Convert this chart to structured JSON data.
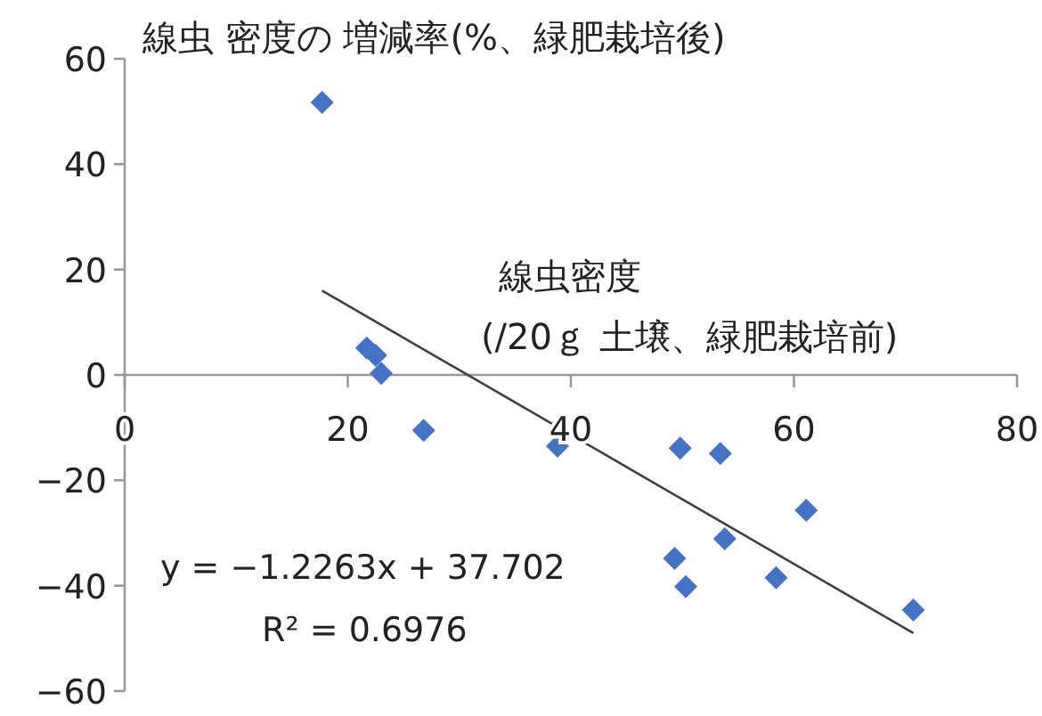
{
  "chart_data": {
    "type": "scatter",
    "ylabel": "線虫 密度の 増減率(%、緑肥栽培後)",
    "xlabel": "線虫密度\n(/20ｇ 土壌、緑肥栽培前)",
    "xlim": [
      0,
      80
    ],
    "ylim": [
      -60,
      60
    ],
    "xticks": [
      0,
      20,
      40,
      60,
      80
    ],
    "yticks": [
      -60,
      -40,
      -20,
      0,
      20,
      40,
      60
    ],
    "annotations": [
      "y = −1.2263x + 37.702",
      "R² = 0.6976"
    ],
    "series": [
      {
        "color": "#4472c4",
        "marker": "diamond",
        "x": [
          17.7,
          21.7,
          22.5,
          23.0,
          26.8,
          38.8,
          49.8,
          53.4,
          49.3,
          50.3,
          53.8,
          58.4,
          61.1,
          70.7
        ],
        "values": [
          51.7,
          5.1,
          3.7,
          0.3,
          -10.5,
          -13.5,
          -13.9,
          -14.9,
          -34.8,
          -40.2,
          -31.1,
          -38.5,
          -25.7,
          -44.6
        ]
      },
      {
        "type": "line",
        "color": "#404040",
        "marker": "none",
        "x": [
          17.7,
          70.7
        ],
        "values": [
          16.0,
          -49.0
        ]
      }
    ]
  }
}
